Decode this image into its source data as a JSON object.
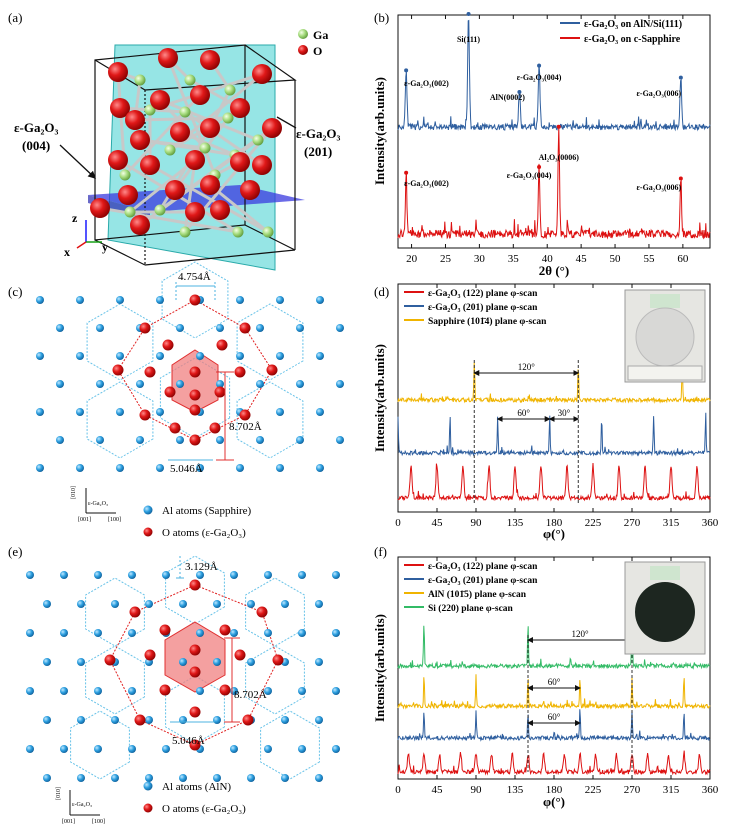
{
  "panel_labels": {
    "a": "(a)",
    "b": "(b)",
    "c": "(c)",
    "d": "(d)",
    "e": "(e)",
    "f": "(f)"
  },
  "panel_a": {
    "legend_ga": "Ga",
    "legend_o": "O",
    "label_004_name": "ε-Ga₂O₃",
    "label_004_hkl": "(004)",
    "label_201_name": "ε-Ga₂O₃",
    "label_201_hkl": "(201)",
    "axis_z": "z",
    "axis_x": "x",
    "axis_y": "y",
    "colors": {
      "ga": "#9fd67a",
      "o": "#d81a1a",
      "plane_201": "#3fd0d0",
      "plane_004": "#3a3adf"
    }
  },
  "panel_c": {
    "dim_top": "4.754Å",
    "dim_right": "8.702Å",
    "dim_bottom": "5.046Å",
    "axes_top": "[010]",
    "axes_mid": "ε-Ga₂O₃",
    "axes_left": "[001]",
    "axes_right": "[100]",
    "legend_al": "Al atoms (Sapphire)",
    "legend_o": "O atoms (ε-Ga₂O₃)"
  },
  "panel_e": {
    "dim_top": "3.129Å",
    "dim_right": "8.702Å",
    "dim_bottom": "5.046Å",
    "axes_top": "[010]",
    "axes_mid": "ε-Ga₂O₃",
    "axes_left": "[001]",
    "axes_right": "[100]",
    "legend_al": "Al atoms (AlN)",
    "legend_o": "O atoms (ε-Ga₂O₃)"
  },
  "chart_data": [
    {
      "type": "line",
      "panel": "b",
      "xlabel": "2θ (°)",
      "ylabel": "Intensity(arb.units)",
      "xlim": [
        18,
        64
      ],
      "xticks": [
        20,
        25,
        30,
        35,
        40,
        45,
        50,
        55,
        60
      ],
      "series": [
        {
          "name": "ε-Ga₂O₃ on AlN/Si(111)",
          "color": "#2f5f9f",
          "peaks": [
            {
              "x": 19.2,
              "label": "ε-Ga₂O₃(002)"
            },
            {
              "x": 28.4,
              "label": "Si(111)"
            },
            {
              "x": 35.9,
              "label": "AlN(0002)"
            },
            {
              "x": 38.8,
              "label": "ε-Ga₂O₃(004)"
            },
            {
              "x": 59.7,
              "label": "ε-Ga₂O₃(006)"
            }
          ]
        },
        {
          "name": "ε-Ga₂O₃ on c-Sapphire",
          "color": "#dd1111",
          "peaks": [
            {
              "x": 19.2,
              "label": "ε-Ga₂O₃(002)"
            },
            {
              "x": 38.8,
              "label": "ε-Ga₂O₃(004)"
            },
            {
              "x": 41.7,
              "label": "Al₂O₃(0006)"
            },
            {
              "x": 59.7,
              "label": "ε-Ga₂O₃(006)"
            }
          ]
        }
      ]
    },
    {
      "type": "line",
      "panel": "d",
      "xlabel": "φ(°)",
      "ylabel": "Intensity(arb.units)",
      "xlim": [
        0,
        360
      ],
      "xticks": [
        0,
        45,
        90,
        135,
        180,
        225,
        270,
        315,
        360
      ],
      "series": [
        {
          "name": "ε-Ga₂O₃ (122) plane φ-scan",
          "color": "#dd1111",
          "peaks": [
            {
              "x": 15
            },
            {
              "x": 45
            },
            {
              "x": 75
            },
            {
              "x": 105
            },
            {
              "x": 135
            },
            {
              "x": 165
            },
            {
              "x": 195
            },
            {
              "x": 225
            },
            {
              "x": 255
            },
            {
              "x": 285
            },
            {
              "x": 315
            },
            {
              "x": 345
            }
          ]
        },
        {
          "name": "ε-Ga₂O₃ (201) plane φ-scan",
          "color": "#2f5f9f",
          "peaks": [
            {
              "x": 0
            },
            {
              "x": 60
            },
            {
              "x": 115
            },
            {
              "x": 175
            },
            {
              "x": 235
            },
            {
              "x": 295
            },
            {
              "x": 355
            }
          ]
        },
        {
          "name": "Sapphire (101̄4) plane φ-scan",
          "color": "#f0b400",
          "peaks": [
            {
              "x": 88
            },
            {
              "x": 208
            },
            {
              "x": 328
            }
          ]
        }
      ],
      "annotations": [
        "120°",
        "60°",
        "30°"
      ]
    },
    {
      "type": "line",
      "panel": "f",
      "xlabel": "φ(°)",
      "ylabel": "Intensity(arb.units)",
      "xlim": [
        0,
        360
      ],
      "xticks": [
        0,
        45,
        90,
        135,
        180,
        225,
        270,
        315,
        360
      ],
      "series": [
        {
          "name": "ε-Ga₂O₃ (122) plane φ-scan",
          "color": "#dd1111",
          "peaks": [
            {
              "x": 12
            },
            {
              "x": 30
            },
            {
              "x": 48
            },
            {
              "x": 72
            },
            {
              "x": 90
            },
            {
              "x": 108
            },
            {
              "x": 132
            },
            {
              "x": 150
            },
            {
              "x": 168
            },
            {
              "x": 192
            },
            {
              "x": 210
            },
            {
              "x": 228
            },
            {
              "x": 252
            },
            {
              "x": 270
            },
            {
              "x": 288
            },
            {
              "x": 312
            },
            {
              "x": 330
            },
            {
              "x": 348
            }
          ]
        },
        {
          "name": "ε-Ga₂O₃ (201) plane φ-scan",
          "color": "#2f5f9f",
          "peaks": [
            {
              "x": 30
            },
            {
              "x": 90
            },
            {
              "x": 150
            },
            {
              "x": 210
            },
            {
              "x": 270
            },
            {
              "x": 330
            }
          ]
        },
        {
          "name": "AlN (101̄5) plane φ-scan",
          "color": "#f0b400",
          "peaks": [
            {
              "x": 30
            },
            {
              "x": 90
            },
            {
              "x": 150
            },
            {
              "x": 210
            },
            {
              "x": 270
            },
            {
              "x": 330
            }
          ]
        },
        {
          "name": "Si (220) plane φ-scan",
          "color": "#33bb66",
          "peaks": [
            {
              "x": 30
            },
            {
              "x": 150
            },
            {
              "x": 270
            }
          ]
        }
      ],
      "annotations": [
        "120°",
        "60°",
        "60°"
      ]
    }
  ]
}
